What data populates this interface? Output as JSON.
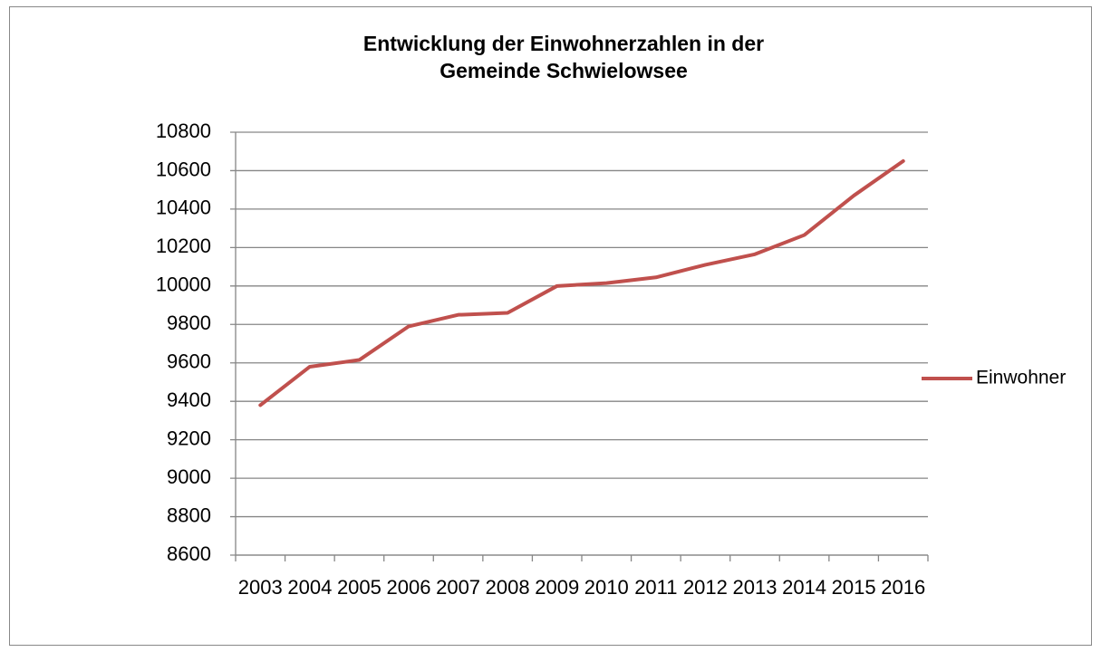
{
  "chart_data": {
    "type": "line",
    "title": [
      "Entwicklung der Einwohnerzahlen in der",
      "Gemeinde Schwielowsee"
    ],
    "categories": [
      "2003",
      "2004",
      "2005",
      "2006",
      "2007",
      "2008",
      "2009",
      "2010",
      "2011",
      "2012",
      "2013",
      "2014",
      "2015",
      "2016"
    ],
    "series": [
      {
        "name": "Einwohner",
        "color": "#c0504d",
        "values": [
          9380,
          9580,
          9615,
          9790,
          9850,
          9860,
          10000,
          10015,
          10045,
          10110,
          10165,
          10265,
          10470,
          10650
        ]
      }
    ],
    "ylim": [
      8600,
      10800
    ],
    "yticks": [
      8600,
      8800,
      9000,
      9200,
      9400,
      9600,
      9800,
      10000,
      10200,
      10400,
      10600,
      10800
    ],
    "grid": true,
    "legend": "right"
  }
}
